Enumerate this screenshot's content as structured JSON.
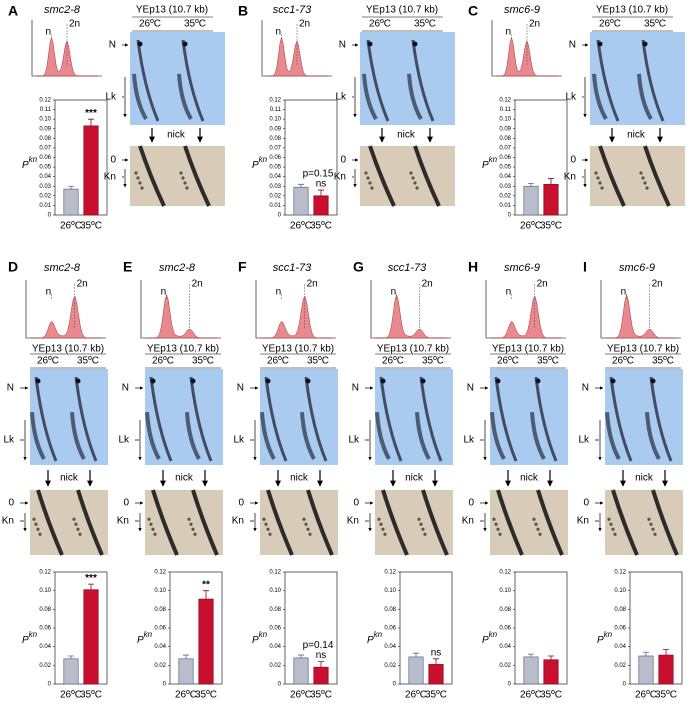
{
  "panels": [
    {
      "label": "A",
      "strain": "smc2-8",
      "histogram_labels": [
        "n",
        "2n"
      ],
      "plasmid": "YEp13 (10.7 kb)",
      "temperatures": [
        "26ºC",
        "35ºC"
      ],
      "gel_labels": [
        "N",
        "Lk"
      ],
      "enzyme": "nick",
      "nicked_labels": [
        "0",
        "Kn"
      ]
    },
    {
      "label": "B",
      "strain": "scc1-73",
      "histogram_labels": [
        "n",
        "2n"
      ],
      "plasmid": "YEp13 (10.7 kb)",
      "temperatures": [
        "26ºC",
        "35ºC"
      ],
      "gel_labels": [
        "N",
        "Lk"
      ],
      "enzyme": "nick",
      "nicked_labels": [
        "0",
        "Kn"
      ]
    },
    {
      "label": "C",
      "strain": "smc6-9",
      "histogram_labels": [
        "n",
        "2n"
      ],
      "plasmid": "YEp13 (10.7 kb)",
      "temperatures": [
        "26ºC",
        "35ºC"
      ],
      "gel_labels": [
        "N",
        "Lk"
      ],
      "enzyme": "nick",
      "nicked_labels": [
        "0",
        "Kn"
      ]
    },
    {
      "label": "D",
      "strain": "smc2-8",
      "histogram_labels": [
        "n",
        "2n"
      ],
      "plasmid": "YEp13 (10.7 kb)",
      "temperatures": [
        "26ºC",
        "35ºC"
      ],
      "gel_labels": [
        "N",
        "Lk"
      ],
      "enzyme": "nick",
      "nicked_labels": [
        "0",
        "Kn"
      ]
    },
    {
      "label": "E",
      "strain": "smc2-8",
      "histogram_labels": [
        "n",
        "2n"
      ],
      "plasmid": "YEp13 (10.7 kb)",
      "temperatures": [
        "26ºC",
        "35ºC"
      ],
      "gel_labels": [
        "N",
        "Lk"
      ],
      "enzyme": "nick",
      "nicked_labels": [
        "0",
        "Kn"
      ]
    },
    {
      "label": "F",
      "strain": "scc1-73",
      "histogram_labels": [
        "n",
        "2n"
      ],
      "plasmid": "YEp13 (10.7 kb)",
      "temperatures": [
        "26ºC",
        "35ºC"
      ],
      "gel_labels": [
        "N",
        "Lk"
      ],
      "enzyme": "nick",
      "nicked_labels": [
        "0",
        "Kn"
      ]
    },
    {
      "label": "G",
      "strain": "scc1-73",
      "histogram_labels": [
        "n",
        "2n"
      ],
      "plasmid": "YEp13 (10.7 kb)",
      "temperatures": [
        "26ºC",
        "35ºC"
      ],
      "gel_labels": [
        "N",
        "Lk"
      ],
      "enzyme": "nick",
      "nicked_labels": [
        "0",
        "Kn"
      ]
    },
    {
      "label": "H",
      "strain": "smc6-9",
      "histogram_labels": [
        "n",
        "2n"
      ],
      "plasmid": "YEp13 (10.7 kb)",
      "temperatures": [
        "26ºC",
        "35ºC"
      ],
      "gel_labels": [
        "N",
        "Lk"
      ],
      "enzyme": "nick",
      "nicked_labels": [
        "0",
        "Kn"
      ]
    },
    {
      "label": "I",
      "strain": "smc6-9",
      "histogram_labels": [
        "n",
        "2n"
      ],
      "plasmid": "YEp13 (10.7 kb)",
      "temperatures": [
        "26ºC",
        "35ºC"
      ],
      "gel_labels": [
        "N",
        "Lk"
      ],
      "enzyme": "nick",
      "nicked_labels": [
        "0",
        "Kn"
      ]
    }
  ],
  "chart_data": [
    {
      "type": "bar",
      "categories": [
        "26ºC",
        "35ºC"
      ],
      "values": [
        0.027,
        0.093
      ],
      "errors": [
        0.003,
        0.007
      ],
      "colors": [
        "#b9bdc9",
        "#c8102e"
      ],
      "ylabel": "P",
      "ylabel_superscript": "kn",
      "significance": "***",
      "ylim": [
        0,
        0.12
      ],
      "yticks": [
        0,
        0.01,
        0.02,
        0.03,
        0.04,
        0.05,
        0.06,
        0.07,
        0.08,
        0.09,
        {
          "value": 0.1,
          "label": "0.10"
        },
        0.11,
        0.12
      ]
    },
    {
      "type": "bar",
      "categories": [
        "26ºC",
        "35ºC"
      ],
      "values": [
        0.029,
        0.02
      ],
      "errors": [
        0.003,
        0.006
      ],
      "colors": [
        "#b9bdc9",
        "#c8102e"
      ],
      "ylabel": "P",
      "ylabel_superscript": "kn",
      "significance": "ns",
      "p_value": "p=0.15",
      "ylim": [
        0,
        0.12
      ],
      "yticks": [
        0,
        0.01,
        0.02,
        0.03,
        0.04,
        0.05,
        0.06,
        0.07,
        0.08,
        0.09,
        {
          "value": 0.1,
          "label": "0.10"
        },
        0.11,
        0.12
      ]
    },
    {
      "type": "bar",
      "categories": [
        "26ºC",
        "35ºC"
      ],
      "values": [
        0.03,
        0.032
      ],
      "errors": [
        0.003,
        0.006
      ],
      "colors": [
        "#b9bdc9",
        "#c8102e"
      ],
      "ylabel": "P",
      "ylabel_superscript": "kn",
      "ylim": [
        0,
        0.12
      ],
      "yticks": [
        0,
        0.01,
        0.02,
        0.03,
        0.04,
        0.05,
        0.06,
        0.07,
        0.08,
        0.09,
        {
          "value": 0.1,
          "label": "0.10"
        },
        0.11,
        0.12
      ]
    },
    {
      "type": "bar",
      "categories": [
        "26ºC",
        "35ºC"
      ],
      "values": [
        0.027,
        0.101
      ],
      "errors": [
        0.003,
        0.006
      ],
      "colors": [
        "#b9bdc9",
        "#c8102e"
      ],
      "ylabel": "P",
      "ylabel_superscript": "kn",
      "significance": "***",
      "ylim": [
        0,
        0.12
      ],
      "yticks": [
        0,
        0.02,
        0.04,
        0.06,
        0.08,
        {
          "value": 0.1,
          "label": "0.10"
        },
        0.12
      ]
    },
    {
      "type": "bar",
      "categories": [
        "26ºC",
        "35ºC"
      ],
      "values": [
        0.027,
        0.091
      ],
      "errors": [
        0.004,
        0.009
      ],
      "colors": [
        "#b9bdc9",
        "#c8102e"
      ],
      "ylabel": "P",
      "ylabel_superscript": "kn",
      "significance": "**",
      "ylim": [
        0,
        0.12
      ],
      "yticks": [
        0,
        0.02,
        0.04,
        0.06,
        0.08,
        {
          "value": 0.1,
          "label": "0.10"
        },
        0.12
      ]
    },
    {
      "type": "bar",
      "categories": [
        "26ºC",
        "35ºC"
      ],
      "values": [
        0.028,
        0.018
      ],
      "errors": [
        0.003,
        0.006
      ],
      "colors": [
        "#b9bdc9",
        "#c8102e"
      ],
      "ylabel": "P",
      "ylabel_superscript": "kn",
      "significance": "ns",
      "p_value": "p=0.14",
      "ylim": [
        0,
        0.12
      ],
      "yticks": [
        0,
        0.02,
        0.04,
        0.06,
        0.08,
        {
          "value": 0.1,
          "label": "0.10"
        },
        0.12
      ]
    },
    {
      "type": "bar",
      "categories": [
        "26ºC",
        "35ºC"
      ],
      "values": [
        0.029,
        0.021
      ],
      "errors": [
        0.004,
        0.006
      ],
      "colors": [
        "#b9bdc9",
        "#c8102e"
      ],
      "ylabel": "P",
      "ylabel_superscript": "kn",
      "significance": "ns",
      "ylim": [
        0,
        0.12
      ],
      "yticks": [
        0,
        0.02,
        0.04,
        0.06,
        0.08,
        {
          "value": 0.1,
          "label": "0.10"
        },
        0.12
      ]
    },
    {
      "type": "bar",
      "categories": [
        "26ºC",
        "35ºC"
      ],
      "values": [
        0.029,
        0.026
      ],
      "errors": [
        0.003,
        0.004
      ],
      "colors": [
        "#b9bdc9",
        "#c8102e"
      ],
      "ylabel": "P",
      "ylabel_superscript": "kn",
      "ylim": [
        0,
        0.12
      ],
      "yticks": [
        0,
        0.02,
        0.04,
        0.06,
        0.08,
        {
          "value": 0.1,
          "label": "0.10"
        },
        0.12
      ]
    },
    {
      "type": "bar",
      "categories": [
        "26ºC",
        "35ºC"
      ],
      "values": [
        0.03,
        0.031
      ],
      "errors": [
        0.004,
        0.006
      ],
      "colors": [
        "#b9bdc9",
        "#c8102e"
      ],
      "ylabel": "P",
      "ylabel_superscript": "kn",
      "ylim": [
        0,
        0.12
      ],
      "yticks": [
        0,
        0.02,
        0.04,
        0.06,
        0.08,
        {
          "value": 0.1,
          "label": "0.10"
        },
        0.12
      ]
    }
  ]
}
